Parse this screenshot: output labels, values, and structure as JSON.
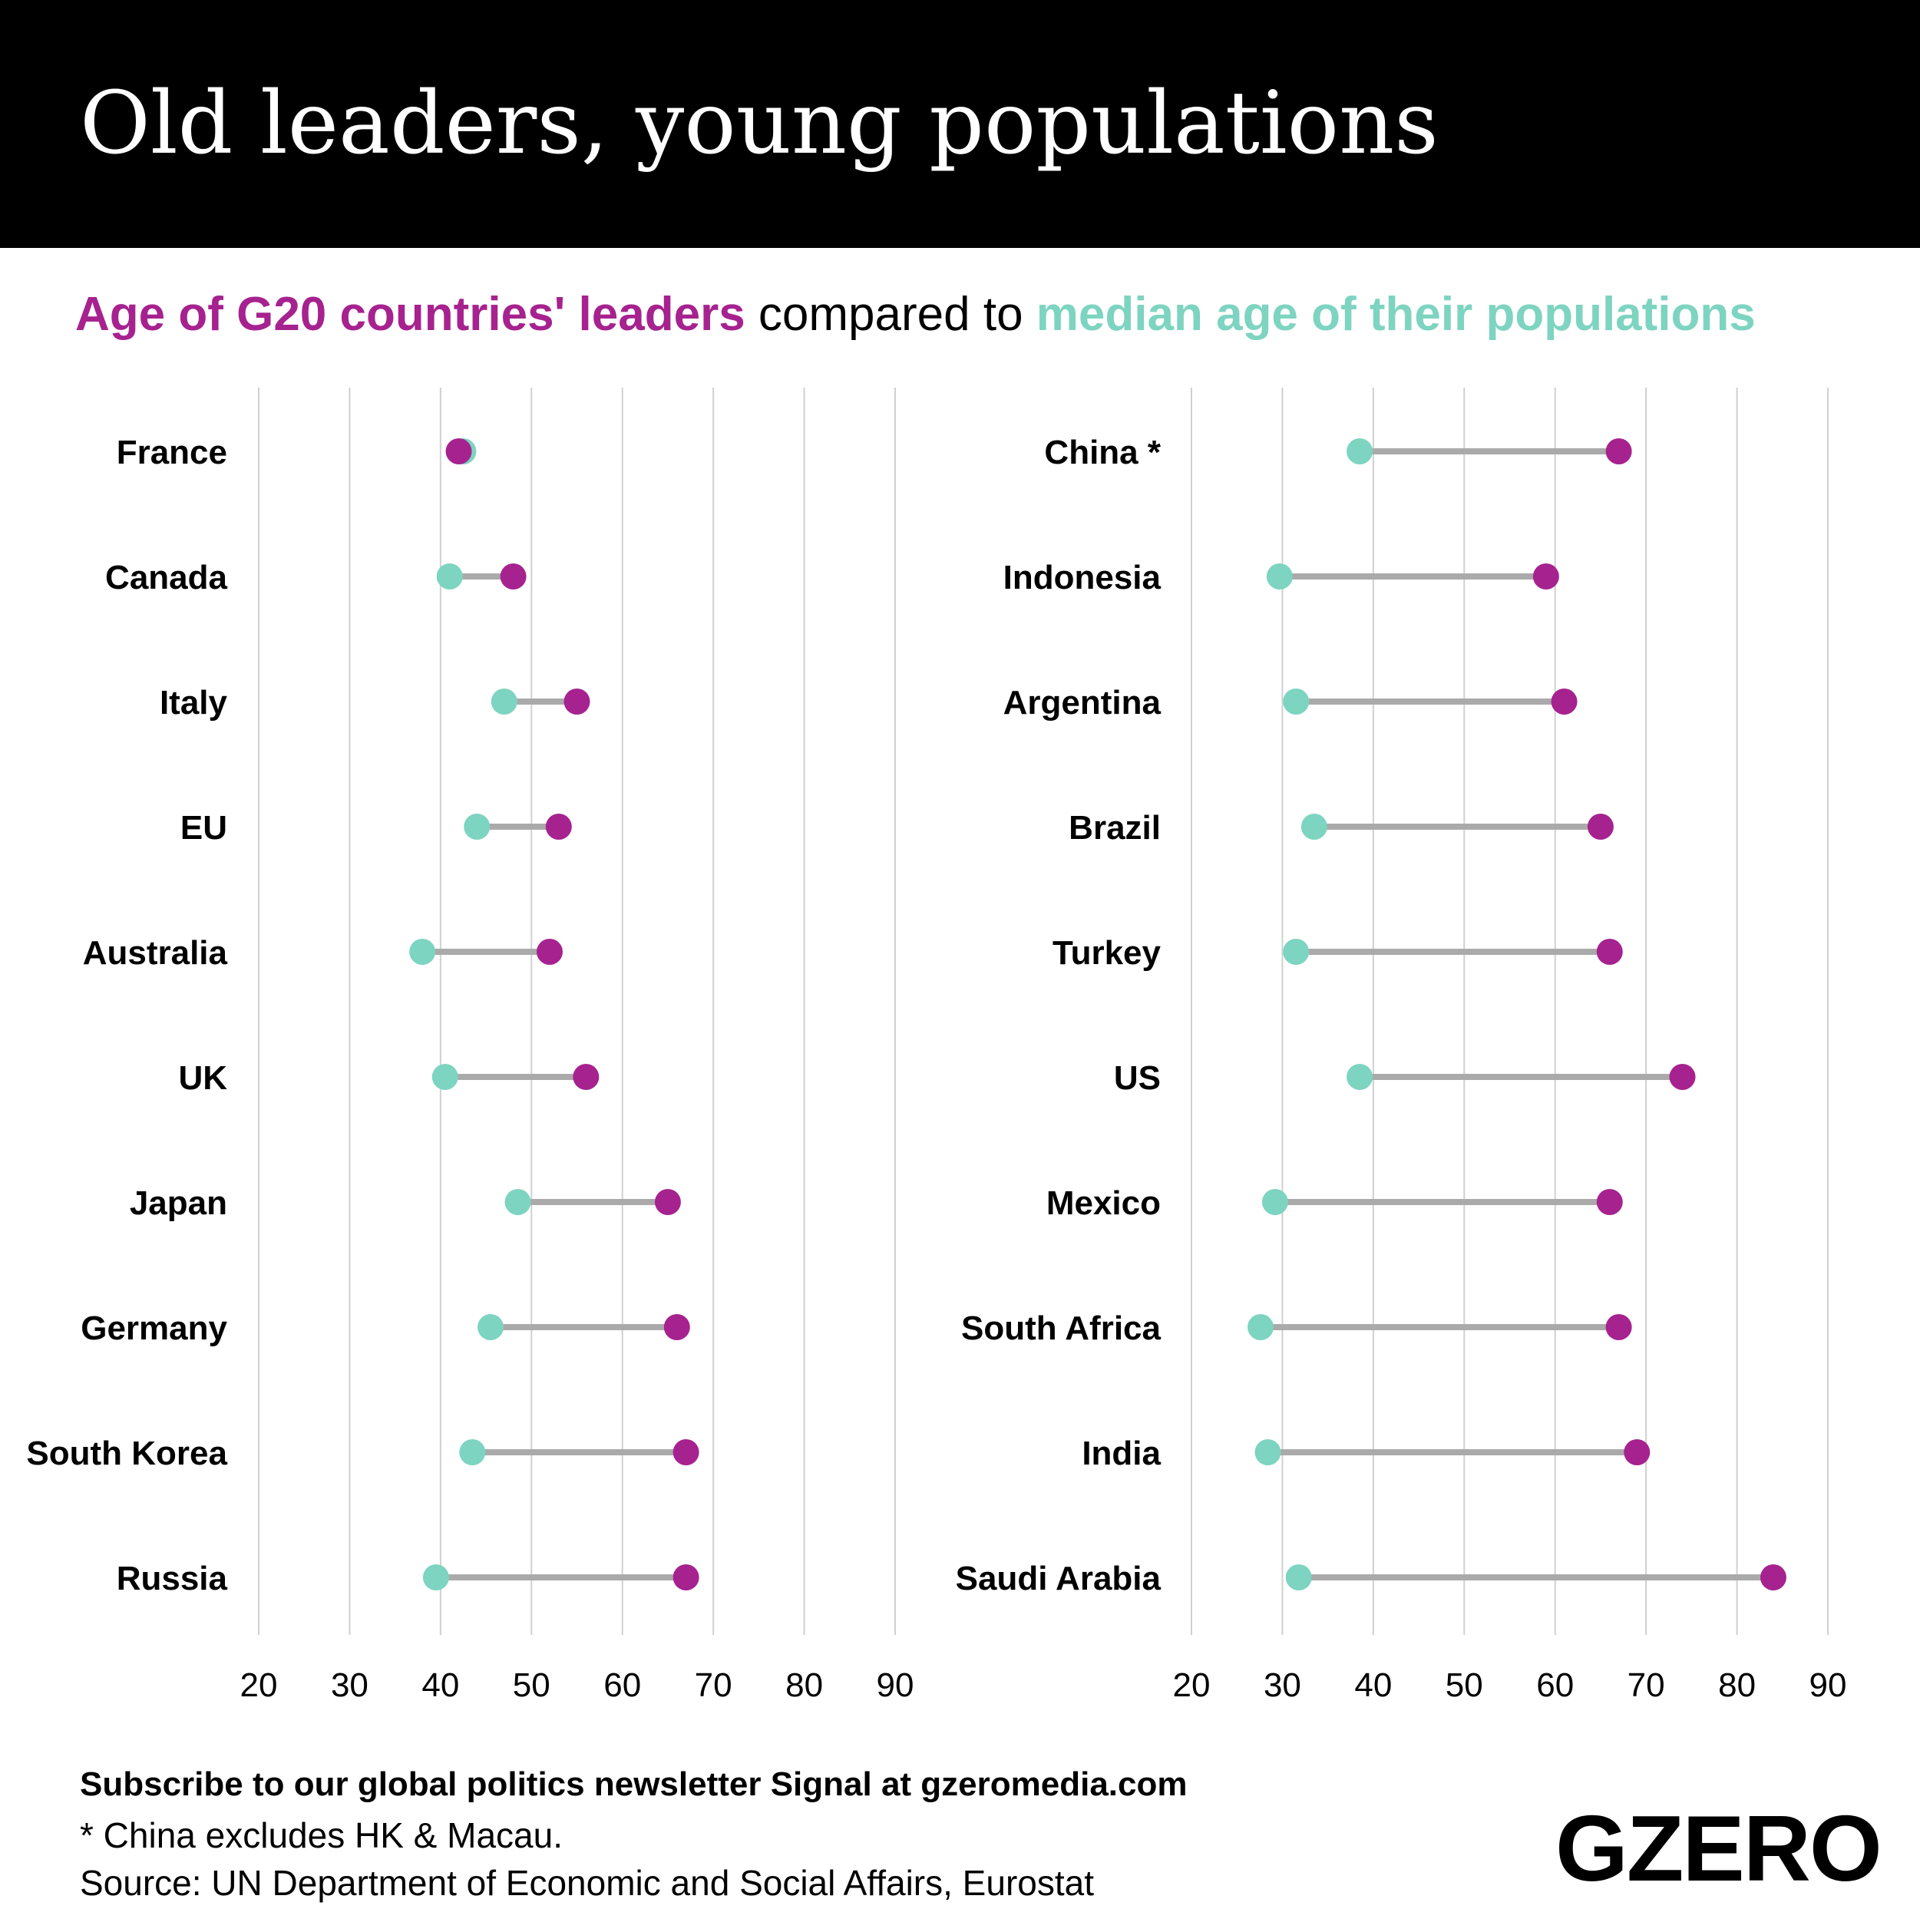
{
  "title": "Old leaders, young populations",
  "subtitle": {
    "lead": "Age of G20 countries' leaders",
    "mid": " compared to ",
    "tail": "median age of their populations"
  },
  "colors": {
    "leader": "#a6228f",
    "median": "#7dd4c0",
    "connector": "#aaaaaa",
    "grid": "#d0d0d0"
  },
  "chart_data": [
    {
      "type": "dot",
      "xlim": [
        20,
        90
      ],
      "xticks": [
        20,
        30,
        40,
        50,
        60,
        70,
        80,
        90
      ],
      "grid": "vertical",
      "categories": [
        "France",
        "Canada",
        "Italy",
        "EU",
        "Australia",
        "UK",
        "Japan",
        "Germany",
        "South Korea",
        "Russia"
      ],
      "series": [
        {
          "key": "median",
          "values": [
            42.5,
            41,
            47,
            44,
            38,
            40.5,
            48.5,
            45.5,
            43.5,
            39.5
          ]
        },
        {
          "key": "leader",
          "values": [
            42,
            48,
            55,
            53,
            52,
            56,
            65,
            66,
            67,
            67
          ]
        }
      ]
    },
    {
      "type": "dot",
      "xlim": [
        20,
        90
      ],
      "xticks": [
        20,
        30,
        40,
        50,
        60,
        70,
        80,
        90
      ],
      "grid": "vertical",
      "categories": [
        "China *",
        "Indonesia",
        "Argentina",
        "Brazil",
        "Turkey",
        "US",
        "Mexico",
        "South Africa",
        "India",
        "Saudi Arabia"
      ],
      "series": [
        {
          "key": "median",
          "values": [
            38.5,
            29.7,
            31.5,
            33.5,
            31.5,
            38.5,
            29.2,
            27.6,
            28.4,
            31.8
          ]
        },
        {
          "key": "leader",
          "values": [
            67,
            59,
            61,
            65,
            66,
            74,
            66,
            67,
            69,
            84
          ]
        }
      ]
    }
  ],
  "footer": {
    "newsletter": "Subscribe to our global politics newsletter Signal at gzeromedia.com",
    "note": "* China excludes HK & Macau.",
    "source": "Source: UN Department of Economic and Social Affairs, Eurostat"
  },
  "logo": "GZERO"
}
